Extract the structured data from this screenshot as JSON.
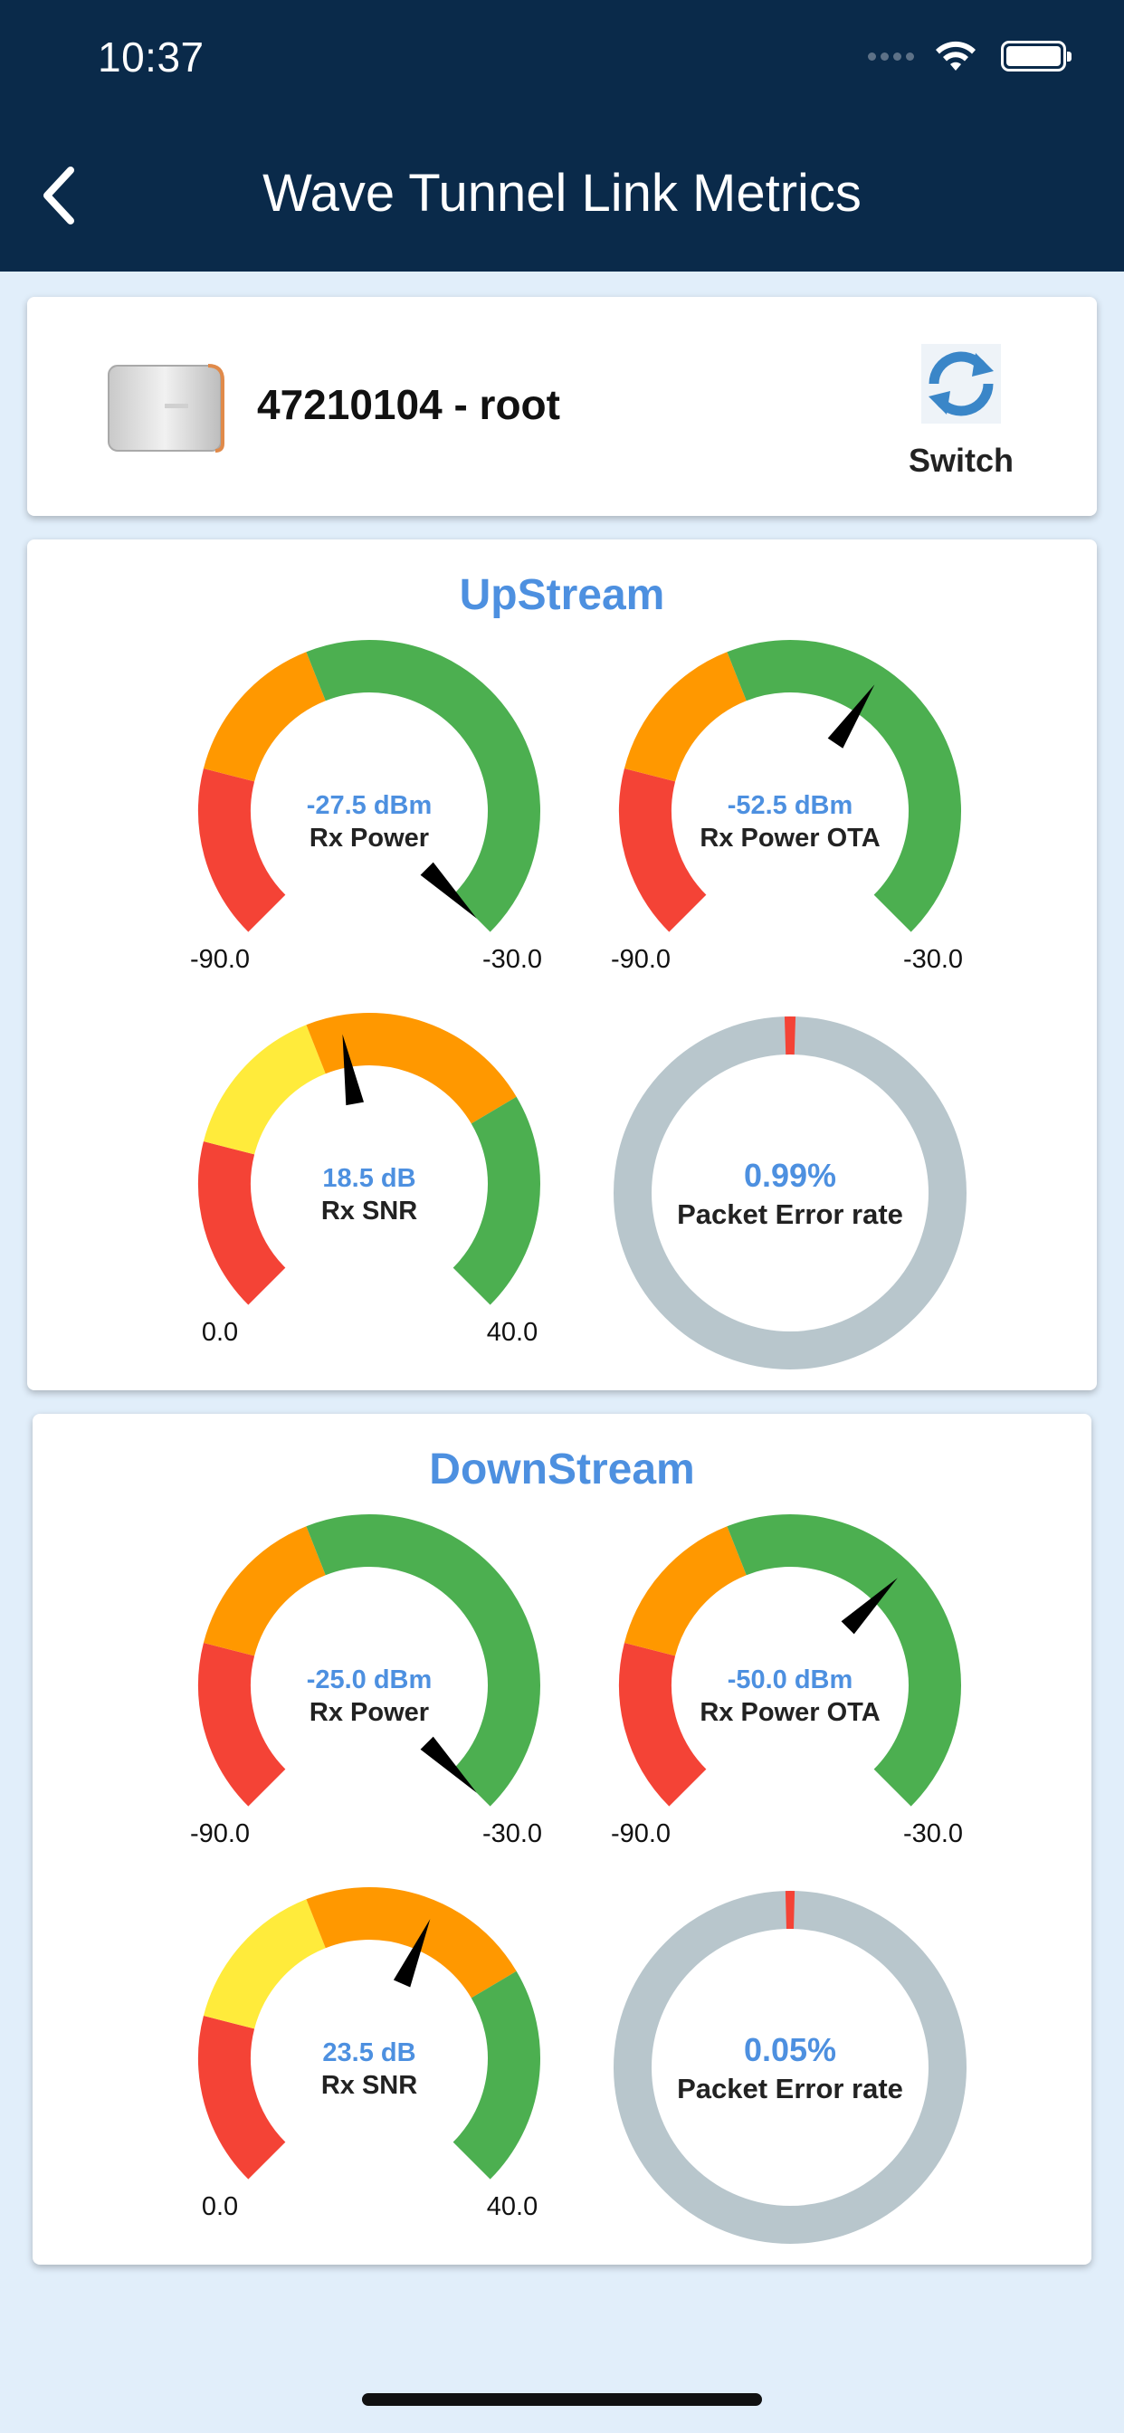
{
  "status_bar": {
    "time": "10:37"
  },
  "header": {
    "title": "Wave Tunnel Link Metrics"
  },
  "device": {
    "name": "47210104 - root",
    "switch_label": "Switch"
  },
  "colors": {
    "header_bg": "#0a2a4a",
    "page_bg": "#e1eefa",
    "accent_blue": "#4d90e0",
    "green": "#4caf50",
    "orange": "#ff9800",
    "red": "#f44336",
    "yellow": "#ffeb3b",
    "ring_gray": "#b8c6cc"
  },
  "sections": [
    {
      "title": "UpStream",
      "rx_power": {
        "value": -27.5,
        "value_text": "-27.5 dBm",
        "label": "Rx Power",
        "min_text": "-90.0",
        "max_text": "-30.0"
      },
      "rx_power_ota": {
        "value": -52.5,
        "value_text": "-52.5 dBm",
        "label": "Rx Power OTA",
        "min_text": "-90.0",
        "max_text": "-30.0"
      },
      "rx_snr": {
        "value": 18.5,
        "value_text": "18.5 dB",
        "label": "Rx SNR",
        "min_text": "0.0",
        "max_text": "40.0"
      },
      "packet_error": {
        "value": 0.99,
        "value_text": "0.99%",
        "label": "Packet Error rate"
      }
    },
    {
      "title": "DownStream",
      "rx_power": {
        "value": -25.0,
        "value_text": "-25.0 dBm",
        "label": "Rx Power",
        "min_text": "-90.0",
        "max_text": "-30.0"
      },
      "rx_power_ota": {
        "value": -50.0,
        "value_text": "-50.0 dBm",
        "label": "Rx Power OTA",
        "min_text": "-90.0",
        "max_text": "-30.0"
      },
      "rx_snr": {
        "value": 23.5,
        "value_text": "23.5 dB",
        "label": "Rx SNR",
        "min_text": "0.0",
        "max_text": "40.0"
      },
      "packet_error": {
        "value": 0.05,
        "value_text": "0.05%",
        "label": "Packet Error rate"
      }
    }
  ]
}
